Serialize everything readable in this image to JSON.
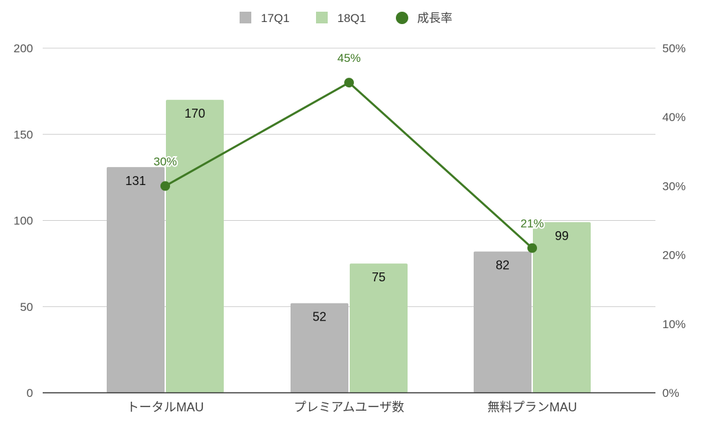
{
  "chart_data": {
    "type": "bar",
    "categories": [
      "トータルMAU",
      "プレミアムユーザ数",
      "無料プランMAU"
    ],
    "series": [
      {
        "name": "17Q1",
        "type": "bar",
        "values": [
          131,
          52,
          82
        ],
        "color": "#b7b7b7",
        "labels": [
          "131",
          "52",
          "82"
        ]
      },
      {
        "name": "18Q1",
        "type": "bar",
        "values": [
          170,
          75,
          99
        ],
        "color": "#b6d7a8",
        "labels": [
          "170",
          "75",
          "99"
        ]
      },
      {
        "name": "成長率",
        "type": "line",
        "axis": "right",
        "values": [
          30,
          45,
          21
        ],
        "color": "#3f7a24",
        "labels": [
          "30%",
          "45%",
          "21%"
        ]
      }
    ],
    "y_left": {
      "range": [
        0,
        200
      ],
      "ticks": [
        "0",
        "50",
        "100",
        "150",
        "200"
      ]
    },
    "y_right": {
      "range": [
        0,
        50
      ],
      "ticks": [
        "0%",
        "10%",
        "20%",
        "30%",
        "40%",
        "50%"
      ]
    },
    "grid": true,
    "legend": "top-center"
  }
}
